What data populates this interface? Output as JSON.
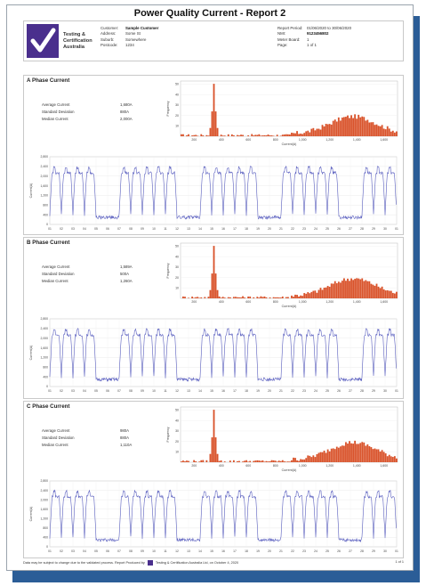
{
  "report": {
    "title": "Power Quality Current - Report 2",
    "brand": [
      "Testing &",
      "Certification",
      "Australia"
    ],
    "left_meta": [
      "Customer:",
      "Address:",
      "Suburb:",
      "Postcode:"
    ],
    "left_vals": [
      "Sample Customer",
      "Some St",
      "Somewhere",
      "1234"
    ],
    "right_meta": [
      "Report Period:",
      "NMI:",
      "Meter Board:",
      "Page:"
    ],
    "right_vals": [
      "01/06/2020 to 30/06/2020",
      "9123456802",
      "1",
      "1 of 1"
    ]
  },
  "stat_labels": [
    "Average Current",
    "Standard Deviation",
    "Median Current"
  ],
  "phases": [
    {
      "title": "A Phase Current",
      "stats": [
        "1,680A",
        "880A",
        "2,000A"
      ]
    },
    {
      "title": "B Phase Current",
      "stats": [
        "1,589A",
        "500A",
        "1,260A"
      ]
    },
    {
      "title": "C Phase Current",
      "stats": [
        "980A",
        "880A",
        "1,110A"
      ]
    }
  ],
  "histogram": {
    "ylabel": "Frequency",
    "xlabel": "Current(A)",
    "x_ticks": [
      "200",
      "400",
      "600",
      "800",
      "1,000",
      "1,200",
      "1,400",
      "1,600"
    ],
    "y_ticks": [
      "10",
      "20",
      "30",
      "40",
      "50"
    ],
    "bar_color": "#d9532b"
  },
  "timeseries": {
    "ylabel": "Current(A)",
    "y_ticks": [
      "0",
      "400",
      "800",
      "1,200",
      "1,600",
      "2,000",
      "2,400",
      "2,800"
    ],
    "x_ticks": [
      "01",
      "02",
      "03",
      "04",
      "05",
      "06",
      "07",
      "08",
      "09",
      "10",
      "11",
      "12",
      "13",
      "14",
      "15",
      "16",
      "17",
      "18",
      "19",
      "20",
      "21",
      "22",
      "23",
      "24",
      "25",
      "26",
      "27",
      "28",
      "29",
      "30",
      "01"
    ],
    "line_color": "#5a5fbf"
  },
  "footer": {
    "note": "Data may be subject to change due to the validated process. Report Produced by",
    "credit": "Testing & Certification Australia Ltd, on October 4, 2020",
    "page": "1 of 1"
  }
}
